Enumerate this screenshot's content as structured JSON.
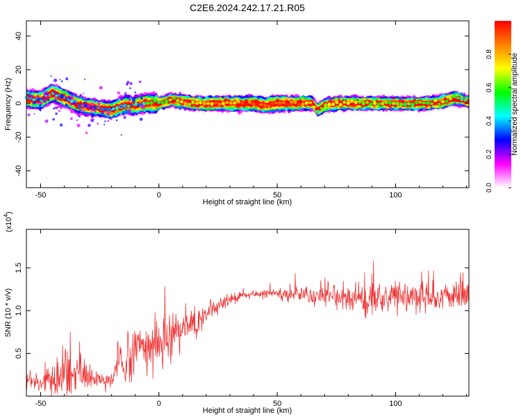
{
  "title": "C2E6.2024.242.17.21.R05",
  "chart_data": [
    {
      "type": "heatmap",
      "title": "C2E6.2024.242.17.21.R05",
      "xlabel": "Height of straight line (km)",
      "ylabel": "Frequency (Hz)",
      "xlim": [
        -56,
        131
      ],
      "ylim": [
        -50,
        49
      ],
      "xticks": [
        -50,
        0,
        50,
        100
      ],
      "yticks": [
        -40,
        -20,
        0,
        20,
        40
      ],
      "colorbar": {
        "label": "Normalized spectral amplitude",
        "range": [
          0,
          1
        ],
        "ticks": [
          "0.0",
          "0.2",
          "0.4",
          "0.6",
          "0.8"
        ],
        "colors": [
          "#ffffff",
          "#ff00ff",
          "#0000ff",
          "#00ffff",
          "#00ff00",
          "#ffff00",
          "#ff7f00",
          "#ff0000"
        ]
      },
      "ridge": {
        "x": [
          -56,
          -50,
          -45,
          -40,
          -35,
          -30,
          -25,
          -20,
          -15,
          -10,
          -5,
          0,
          5,
          10,
          15,
          20,
          25,
          30,
          35,
          40,
          45,
          50,
          55,
          60,
          65,
          67,
          70,
          75,
          80,
          85,
          90,
          95,
          100,
          105,
          110,
          115,
          120,
          125,
          131
        ],
        "frequency": [
          3,
          2,
          6,
          3,
          0,
          -2,
          -3,
          -4,
          -1,
          -1,
          0,
          0,
          2,
          1,
          0,
          0,
          0,
          0,
          0,
          0,
          -1,
          0,
          0,
          0,
          0,
          -4,
          -1,
          0,
          0,
          0,
          0,
          0,
          0,
          0,
          0,
          0,
          1,
          3,
          1
        ],
        "amplitude": [
          0.4,
          0.45,
          0.5,
          0.45,
          0.4,
          0.35,
          0.35,
          0.4,
          0.45,
          0.5,
          0.55,
          0.6,
          0.65,
          0.75,
          0.75,
          0.8,
          0.85,
          0.85,
          0.9,
          0.9,
          0.95,
          1.0,
          0.95,
          0.85,
          0.7,
          0.5,
          0.65,
          0.7,
          0.7,
          0.7,
          0.65,
          0.65,
          0.6,
          0.6,
          0.6,
          0.6,
          0.7,
          0.6,
          0.5
        ]
      }
    },
    {
      "type": "line",
      "xlabel": "Height of straight line (km)",
      "ylabel": "SNR (10 * v/v)",
      "multiplier": "(x10",
      "multiplier_exp": "4",
      "xlim": [
        -56,
        131
      ],
      "ylim": [
        0,
        1.95
      ],
      "xticks": [
        -50,
        0,
        50,
        100
      ],
      "yticks": [
        "0.5",
        "1.0",
        "1.5"
      ],
      "color": "#ee3333",
      "series": [
        {
          "x": [
            -56,
            -50,
            -45,
            -40,
            -35,
            -30,
            -25,
            -20,
            -18,
            -15,
            -10,
            -5,
            0,
            5,
            10,
            15,
            20,
            25,
            30,
            35,
            40,
            45,
            50,
            55,
            60,
            65,
            70,
            75,
            80,
            85,
            90,
            95,
            100,
            105,
            110,
            115,
            120,
            125,
            131
          ],
          "values": [
            0.18,
            0.15,
            0.2,
            0.25,
            0.25,
            0.22,
            0.18,
            0.15,
            0.3,
            0.45,
            0.5,
            0.55,
            0.6,
            0.7,
            0.75,
            0.85,
            0.95,
            1.05,
            1.12,
            1.18,
            1.2,
            1.2,
            1.2,
            1.2,
            1.2,
            1.18,
            1.18,
            1.17,
            1.15,
            1.15,
            1.15,
            1.15,
            1.15,
            1.15,
            1.17,
            1.17,
            1.17,
            1.18,
            1.2
          ],
          "noise": [
            0.1,
            0.12,
            0.18,
            0.3,
            0.25,
            0.2,
            0.1,
            0.1,
            0.3,
            0.35,
            0.35,
            0.35,
            0.35,
            0.35,
            0.3,
            0.25,
            0.2,
            0.12,
            0.08,
            0.06,
            0.05,
            0.05,
            0.06,
            0.1,
            0.12,
            0.14,
            0.15,
            0.18,
            0.2,
            0.22,
            0.22,
            0.22,
            0.22,
            0.2,
            0.2,
            0.18,
            0.18,
            0.18,
            0.18
          ]
        }
      ]
    }
  ]
}
